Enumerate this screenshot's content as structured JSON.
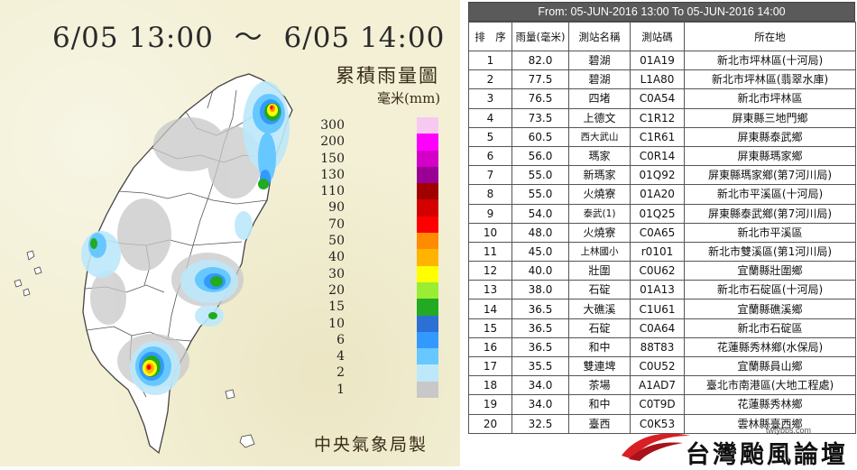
{
  "map": {
    "time_start": "6/05 13:00",
    "time_sep": "～",
    "time_end": "6/05 14:00",
    "title": "累積雨量圖",
    "unit": "毫米(mm)",
    "credit": "中央氣象局製",
    "legend": [
      {
        "label": "300",
        "color": "#f7c8f0"
      },
      {
        "label": "200",
        "color": "#ff00ff"
      },
      {
        "label": "150",
        "color": "#d400c8"
      },
      {
        "label": "130",
        "color": "#9b0096"
      },
      {
        "label": "110",
        "color": "#a00000"
      },
      {
        "label": "90",
        "color": "#d40000"
      },
      {
        "label": "70",
        "color": "#ff0000"
      },
      {
        "label": "50",
        "color": "#ff8c00"
      },
      {
        "label": "40",
        "color": "#ffb400"
      },
      {
        "label": "30",
        "color": "#ffff00"
      },
      {
        "label": "20",
        "color": "#99ee33"
      },
      {
        "label": "15",
        "color": "#22aa22"
      },
      {
        "label": "10",
        "color": "#2c70d6"
      },
      {
        "label": "6",
        "color": "#3399ff"
      },
      {
        "label": "4",
        "color": "#66c8ff"
      },
      {
        "label": "2",
        "color": "#bde8fa"
      },
      {
        "label": "1",
        "color": "#c8c8c8"
      }
    ]
  },
  "table": {
    "header": "From: 05-JUN-2016 13:00 To 05-JUN-2016 14:00",
    "columns": [
      "排　序",
      "雨量(毫米)",
      "測站名稱",
      "測站碼",
      "所在地"
    ],
    "rows": [
      [
        "1",
        "82.0",
        "碧湖",
        "01A19",
        "新北市坪林區(十河局)"
      ],
      [
        "2",
        "77.5",
        "碧湖",
        "L1A80",
        "新北市坪林區(翡翠水庫)"
      ],
      [
        "3",
        "76.5",
        "四堵",
        "C0A54",
        "新北市坪林區"
      ],
      [
        "4",
        "73.5",
        "上德文",
        "C1R12",
        "屏東縣三地門鄉"
      ],
      [
        "5",
        "60.5",
        "西大武山",
        "C1R61",
        "屏東縣泰武鄉"
      ],
      [
        "6",
        "56.0",
        "瑪家",
        "C0R14",
        "屏東縣瑪家鄉"
      ],
      [
        "7",
        "55.0",
        "新瑪家",
        "01Q92",
        "屏東縣瑪家鄉(第7河川局)"
      ],
      [
        "8",
        "55.0",
        "火燒寮",
        "01A20",
        "新北市平溪區(十河局)"
      ],
      [
        "9",
        "54.0",
        "泰武(1)",
        "01Q25",
        "屏東縣泰武鄉(第7河川局)"
      ],
      [
        "10",
        "48.0",
        "火燒寮",
        "C0A65",
        "新北市平溪區"
      ],
      [
        "11",
        "45.0",
        "上林國小",
        "r0101",
        "新北市雙溪區(第1河川局)"
      ],
      [
        "12",
        "40.0",
        "壯圍",
        "C0U62",
        "宜蘭縣壯圍鄉"
      ],
      [
        "13",
        "38.0",
        "石碇",
        "01A13",
        "新北市石碇區(十河局)"
      ],
      [
        "14",
        "36.5",
        "大礁溪",
        "C1U61",
        "宜蘭縣礁溪鄉"
      ],
      [
        "15",
        "36.5",
        "石碇",
        "C0A64",
        "新北市石碇區"
      ],
      [
        "16",
        "36.5",
        "和中",
        "88T83",
        "花蓮縣秀林鄉(水保局)"
      ],
      [
        "17",
        "35.5",
        "雙連埤",
        "C0U52",
        "宜蘭縣員山鄉"
      ],
      [
        "18",
        "34.0",
        "茶場",
        "A1AD7",
        "臺北市南港區(大地工程處)"
      ],
      [
        "19",
        "34.0",
        "和中",
        "C0T9D",
        "花蓮縣秀林鄉"
      ],
      [
        "20",
        "32.5",
        "臺西",
        "C0K53",
        "雲林縣臺西鄉"
      ]
    ]
  },
  "watermark": {
    "url": "twtybbs.com",
    "name": "台灣颱風論壇"
  }
}
